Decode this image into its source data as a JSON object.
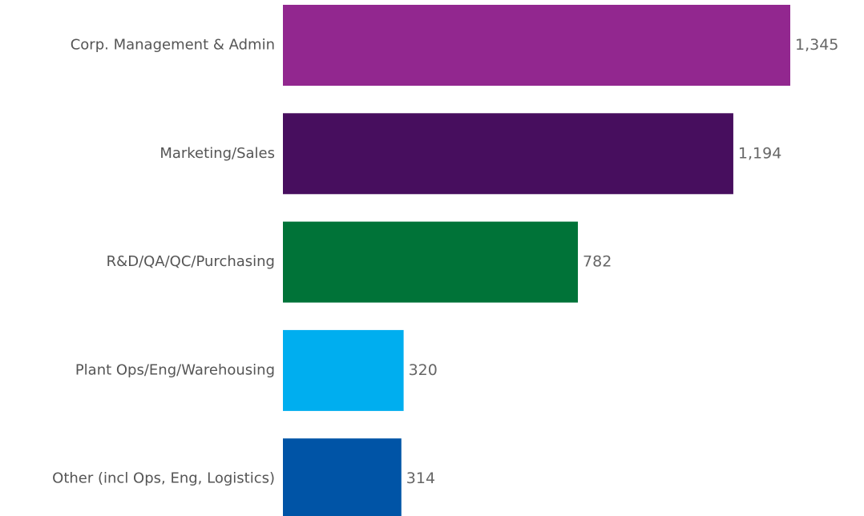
{
  "chart_data": {
    "type": "bar",
    "orientation": "horizontal",
    "categories": [
      "Corp. Management & Admin",
      "Marketing/Sales",
      "R&D/QA/QC/Purchasing",
      "Plant Ops/Eng/Warehousing",
      "Other (incl Ops, Eng, Logistics)"
    ],
    "values": [
      1345,
      1194,
      782,
      320,
      314
    ],
    "value_labels": [
      "1,345",
      "1,194",
      "782",
      "320",
      "314"
    ],
    "colors": [
      "#92278f",
      "#470e5e",
      "#007338",
      "#00aeef",
      "#0054a6"
    ]
  }
}
